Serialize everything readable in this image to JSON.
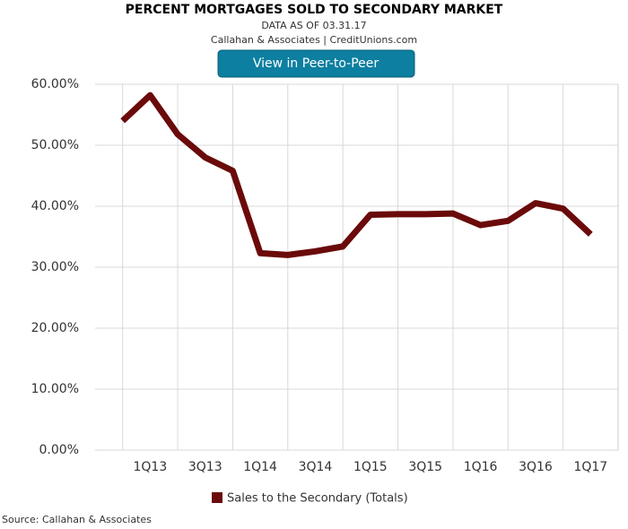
{
  "chart_data": {
    "type": "line",
    "title": "PERCENT MORTGAGES SOLD TO SECONDARY MARKET",
    "subtitle": "DATA AS OF 03.31.17",
    "credit": "Callahan & Associates | CreditUnions.com",
    "button": "View in Peer-to-Peer",
    "source": "Source: Callahan & Associates",
    "categories": [
      null,
      "1Q13",
      null,
      "3Q13",
      null,
      "1Q14",
      null,
      "3Q14",
      null,
      "1Q15",
      null,
      "3Q15",
      null,
      "1Q16",
      null,
      "3Q16",
      null,
      "1Q17"
    ],
    "series": [
      {
        "name": "Sales to the Secondary (Totals)",
        "color": "#6b0a0a",
        "values": [
          54.0,
          58.2,
          51.8,
          48.0,
          45.8,
          32.3,
          32.0,
          32.6,
          33.4,
          38.6,
          38.7,
          38.7,
          38.8,
          36.9,
          37.6,
          40.5,
          39.6,
          35.4
        ]
      }
    ],
    "ylim": [
      0,
      60
    ],
    "yticks": [
      {
        "value": 0,
        "label": "0.00%"
      },
      {
        "value": 10,
        "label": "10.00%"
      },
      {
        "value": 20,
        "label": "20.00%"
      },
      {
        "value": 30,
        "label": "30.00%"
      },
      {
        "value": 40,
        "label": "40.00%"
      },
      {
        "value": 50,
        "label": "50.00%"
      },
      {
        "value": 60,
        "label": "60.00%"
      }
    ],
    "grid": true
  }
}
